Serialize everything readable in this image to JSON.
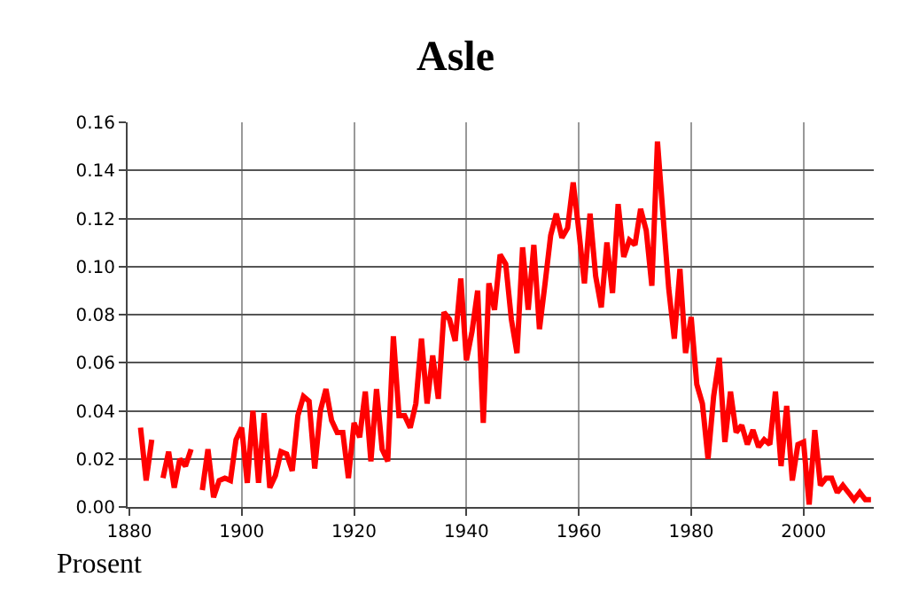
{
  "chart_data": {
    "type": "line",
    "title": "Asle",
    "annotations": [
      "Prosent"
    ],
    "x": [
      1882,
      1883,
      1884,
      1885,
      1886,
      1887,
      1888,
      1889,
      1890,
      1891,
      1892,
      1893,
      1894,
      1895,
      1896,
      1897,
      1898,
      1899,
      1900,
      1901,
      1902,
      1903,
      1904,
      1905,
      1906,
      1907,
      1908,
      1909,
      1910,
      1911,
      1912,
      1913,
      1914,
      1915,
      1916,
      1917,
      1918,
      1919,
      1920,
      1921,
      1922,
      1923,
      1924,
      1925,
      1926,
      1927,
      1928,
      1929,
      1930,
      1931,
      1932,
      1933,
      1934,
      1935,
      1936,
      1937,
      1938,
      1939,
      1940,
      1941,
      1942,
      1943,
      1944,
      1945,
      1946,
      1947,
      1948,
      1949,
      1950,
      1951,
      1952,
      1953,
      1954,
      1955,
      1956,
      1957,
      1958,
      1959,
      1960,
      1961,
      1962,
      1963,
      1964,
      1965,
      1966,
      1967,
      1968,
      1969,
      1970,
      1971,
      1972,
      1973,
      1974,
      1975,
      1976,
      1977,
      1978,
      1979,
      1980,
      1981,
      1982,
      1983,
      1984,
      1985,
      1986,
      1987,
      1988,
      1989,
      1990,
      1991,
      1992,
      1993,
      1994,
      1995,
      1996,
      1997,
      1998,
      1999,
      2000,
      2001,
      2002,
      2003,
      2004,
      2005,
      2006,
      2007,
      2008,
      2009,
      2010,
      2011,
      2012
    ],
    "series": [
      {
        "color": "#ff0000",
        "values": [
          0.033,
          0.011,
          0.028,
          null,
          0.012,
          0.023,
          0.008,
          0.02,
          0.017,
          0.024,
          null,
          0.007,
          0.024,
          0.004,
          0.011,
          0.012,
          0.011,
          0.028,
          0.033,
          0.01,
          0.04,
          0.01,
          0.039,
          0.008,
          0.013,
          0.023,
          0.022,
          0.015,
          0.038,
          0.046,
          0.044,
          0.016,
          0.04,
          0.049,
          0.036,
          0.031,
          0.031,
          0.012,
          0.035,
          0.029,
          0.048,
          0.019,
          0.049,
          0.024,
          0.019,
          0.071,
          0.038,
          0.038,
          0.033,
          0.043,
          0.07,
          0.043,
          0.063,
          0.045,
          0.081,
          0.078,
          0.069,
          0.095,
          0.061,
          0.073,
          0.09,
          0.035,
          0.093,
          0.082,
          0.105,
          0.101,
          0.078,
          0.064,
          0.108,
          0.082,
          0.109,
          0.074,
          0.093,
          0.113,
          0.122,
          0.112,
          0.116,
          0.135,
          0.115,
          0.093,
          0.122,
          0.096,
          0.083,
          0.11,
          0.089,
          0.126,
          0.104,
          0.111,
          0.109,
          0.124,
          0.115,
          0.092,
          0.152,
          0.121,
          0.091,
          0.07,
          0.099,
          0.064,
          0.079,
          0.051,
          0.043,
          0.02,
          0.046,
          0.062,
          0.027,
          0.048,
          0.031,
          0.034,
          0.026,
          0.032,
          0.025,
          0.028,
          0.026,
          0.048,
          0.017,
          0.042,
          0.011,
          0.026,
          0.027,
          0.001,
          0.032,
          0.009,
          0.012,
          0.012,
          0.006,
          0.009,
          0.006,
          0.003,
          0.006,
          0.003,
          0.003
        ]
      }
    ],
    "xlim": [
      1879.7,
      2012.5
    ],
    "xticks": [
      1880,
      1900,
      1920,
      1940,
      1960,
      1980,
      2000
    ],
    "ylim": [
      0,
      0.16
    ],
    "yticks": [
      {
        "value": 0,
        "label": "0.00"
      },
      {
        "value": 0.02,
        "label": "0.02"
      },
      {
        "value": 0.04,
        "label": "0.04"
      },
      {
        "value": 0.06,
        "label": "0.06"
      },
      {
        "value": 0.08,
        "label": "0.08"
      },
      {
        "value": 0.1,
        "label": "0.10"
      },
      {
        "value": 0.12,
        "label": "0.12"
      },
      {
        "value": 0.14,
        "label": "0.14"
      },
      {
        "value": 0.16,
        "label": "0.16"
      }
    ],
    "grid": true,
    "marker": "none",
    "line_style": "solid"
  }
}
